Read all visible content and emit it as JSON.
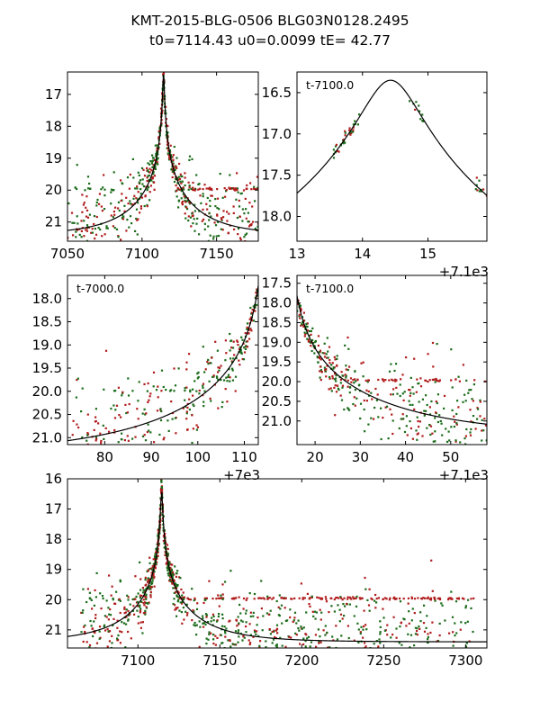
{
  "figure": {
    "title_line1": "KMT-2015-BLG-0506 BLG03N0128.2495",
    "title_line2": "t0=7114.43 u0=0.0099 tE=  42.77"
  },
  "model": {
    "t0": 7114.43,
    "u0": 0.0099,
    "tE": 42.77,
    "mag_base": 21.4,
    "mag_peak": 16.35
  },
  "colors": {
    "series_a": "#1a6b1a",
    "series_b": "#b01c1c",
    "model": "#000000"
  },
  "chart_data": [
    {
      "type": "scatter",
      "name": "panel-full-lightcurve-top",
      "xlim": [
        7050,
        7178
      ],
      "ylim": [
        21.6,
        16.3
      ],
      "xticks": [
        7050,
        7100,
        7150
      ],
      "xtick_labels": [
        "7050",
        "7100",
        "7150"
      ],
      "yticks": [
        17,
        18,
        19,
        20,
        21
      ],
      "ytick_labels": [
        "17",
        "18",
        "19",
        "20",
        "21"
      ],
      "offset_label": "",
      "annotation": "",
      "data_range": [
        7050,
        7178
      ],
      "n_points": 700,
      "seed": 11
    },
    {
      "type": "scatter",
      "name": "panel-peak-zoom",
      "xlim": [
        13,
        15.9
      ],
      "ylim": [
        18.3,
        16.25
      ],
      "xticks": [
        13,
        14,
        15
      ],
      "xtick_labels": [
        "13",
        "14",
        "15"
      ],
      "yticks": [
        16.5,
        17.0,
        17.5,
        18.0
      ],
      "ytick_labels": [
        "16.5",
        "17.0",
        "17.5",
        "18.0"
      ],
      "offset_label": "+7.1e3",
      "annotation": "t-7100.0",
      "x_offset": 7100,
      "clusters": [
        {
          "x": [
            13.55,
            13.72
          ],
          "n": 12
        },
        {
          "x": [
            13.7,
            13.95
          ],
          "n": 22
        },
        {
          "x": [
            14.7,
            14.95
          ],
          "n": 10
        },
        {
          "x": [
            15.72,
            15.9
          ],
          "n": 10
        }
      ],
      "seed": 23
    },
    {
      "type": "scatter",
      "name": "panel-rise",
      "xlim": [
        72,
        113
      ],
      "ylim": [
        21.15,
        17.5
      ],
      "xticks": [
        80,
        90,
        100,
        110
      ],
      "xtick_labels": [
        "80",
        "90",
        "100",
        "110"
      ],
      "yticks": [
        18.0,
        18.5,
        19.0,
        19.5,
        20.0,
        20.5,
        21.0
      ],
      "ytick_labels": [
        "18.0",
        "18.5",
        "19.0",
        "19.5",
        "20.0",
        "20.5",
        "21.0"
      ],
      "offset_label": "+7e3",
      "annotation": "t-7000.0",
      "x_offset": 7000,
      "data_range": [
        72,
        113
      ],
      "n_points": 420,
      "seed": 37
    },
    {
      "type": "scatter",
      "name": "panel-decline",
      "xlim": [
        16,
        58
      ],
      "ylim": [
        21.6,
        17.3
      ],
      "xticks": [
        20,
        30,
        40,
        50
      ],
      "xtick_labels": [
        "20",
        "30",
        "40",
        "50"
      ],
      "yticks": [
        17.5,
        18.0,
        18.5,
        19.0,
        19.5,
        20.0,
        20.5,
        21.0
      ],
      "ytick_labels": [
        "17.5",
        "18.0",
        "18.5",
        "19.0",
        "19.5",
        "20.0",
        "20.5",
        "21.0"
      ],
      "offset_label": "+7.1e3",
      "annotation": "t-7100.0",
      "x_offset": 7100,
      "data_range": [
        16,
        58
      ],
      "n_points": 480,
      "seed": 53
    },
    {
      "type": "scatter",
      "name": "panel-full-lightcurve-bottom",
      "xlim": [
        7057,
        7313
      ],
      "ylim": [
        21.6,
        16.0
      ],
      "xticks": [
        7100,
        7150,
        7200,
        7250,
        7300
      ],
      "xtick_labels": [
        "7100",
        "7150",
        "7200",
        "7250",
        "7300"
      ],
      "yticks": [
        16,
        17,
        18,
        19,
        20,
        21
      ],
      "ytick_labels": [
        "16",
        "17",
        "18",
        "19",
        "20",
        "21"
      ],
      "offset_label": "",
      "annotation": "",
      "data_range": [
        7065,
        7305
      ],
      "n_points": 1300,
      "seed": 71
    }
  ]
}
